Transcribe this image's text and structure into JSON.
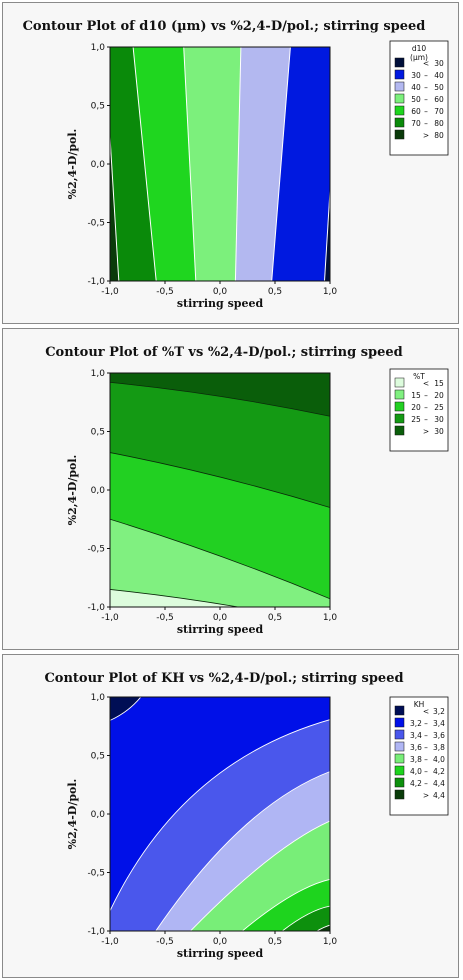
{
  "chart_data": [
    {
      "type": "contour",
      "title": "Contour Plot of d10 (µm) vs %2,4-D/pol.; stirring speed",
      "xlabel": "stirring speed",
      "ylabel": "%2,4-D/pol.",
      "xlim": [
        -1,
        1
      ],
      "ylim": [
        -1,
        1
      ],
      "xticks": [
        "-1,0",
        "-0,5",
        "0,0",
        "0,5",
        "1,0"
      ],
      "yticks": [
        "-1,0",
        "-0,5",
        "0,0",
        "0,5",
        "1,0"
      ],
      "legend": {
        "title": [
          "d10",
          "(µm)"
        ],
        "position": "right",
        "entries": [
          {
            "label": [
              "",
              "<",
              "30"
            ],
            "color": "#000f3a"
          },
          {
            "label": [
              "30",
              "–",
              "40"
            ],
            "color": "#0019e0"
          },
          {
            "label": [
              "40",
              "–",
              "50"
            ],
            "color": "#b3b8f0"
          },
          {
            "label": [
              "50",
              "–",
              "60"
            ],
            "color": "#7cf07c"
          },
          {
            "label": [
              "60",
              "–",
              "70"
            ],
            "color": "#1fd61f"
          },
          {
            "label": [
              "70",
              "–",
              "80"
            ],
            "color": "#0a8a0a"
          },
          {
            "label": [
              "",
              ">",
              "80"
            ],
            "color": "#0a3a0a"
          }
        ]
      },
      "contours": [
        {
          "level": 80,
          "bottom_x": -0.92,
          "top_x": -1.05
        },
        {
          "level": 70,
          "bottom_x": -0.58,
          "top_x": -0.79
        },
        {
          "level": 60,
          "bottom_x": -0.22,
          "top_x": -0.33
        },
        {
          "level": 50,
          "bottom_x": 0.14,
          "top_x": 0.19
        },
        {
          "level": 40,
          "bottom_x": 0.47,
          "top_x": 0.64
        },
        {
          "level": 30,
          "bottom_x": 0.95,
          "top_x": 1.08
        }
      ]
    },
    {
      "type": "contour",
      "title": "Contour Plot of %T vs %2,4-D/pol.; stirring speed",
      "xlabel": "stirring speed",
      "ylabel": "%2,4-D/pol.",
      "xlim": [
        -1,
        1
      ],
      "ylim": [
        -1,
        1
      ],
      "xticks": [
        "-1,0",
        "-0,5",
        "0,0",
        "0,5",
        "1,0"
      ],
      "yticks": [
        "-1,0",
        "-0,5",
        "0,0",
        "0,5",
        "1,0"
      ],
      "legend": {
        "title": [
          "%T"
        ],
        "position": "right",
        "entries": [
          {
            "label": [
              "",
              "<",
              "15"
            ],
            "color": "#ddfcdd"
          },
          {
            "label": [
              "15",
              "–",
              "20"
            ],
            "color": "#80f080"
          },
          {
            "label": [
              "20",
              "–",
              "25"
            ],
            "color": "#22d022"
          },
          {
            "label": [
              "25",
              "–",
              "30"
            ],
            "color": "#149a14"
          },
          {
            "label": [
              "",
              ">",
              "30"
            ],
            "color": "#0a5e0a"
          }
        ]
      },
      "contours": [
        {
          "level": 15,
          "y_left": -0.85,
          "y_right": -1.15
        },
        {
          "level": 20,
          "y_left": -0.25,
          "y_right": -0.93
        },
        {
          "level": 25,
          "y_left": 0.32,
          "y_right": -0.15
        },
        {
          "level": 30,
          "y_left": 0.92,
          "y_right": 0.63
        }
      ]
    },
    {
      "type": "contour",
      "title": "Contour Plot of KH vs %2,4-D/pol.; stirring speed",
      "xlabel": "stirring speed",
      "ylabel": "%2,4-D/pol.",
      "xlim": [
        -1,
        1
      ],
      "ylim": [
        -1,
        1
      ],
      "xticks": [
        "-1,0",
        "-0,5",
        "0,0",
        "0,5",
        "1,0"
      ],
      "yticks": [
        "-1,0",
        "-0,5",
        "0,0",
        "0,5",
        "1,0"
      ],
      "legend": {
        "title": [
          "KH"
        ],
        "position": "right",
        "entries": [
          {
            "label": [
              "",
              "<",
              "3,2"
            ],
            "color": "#000e55"
          },
          {
            "label": [
              "3,2",
              "–",
              "3,4"
            ],
            "color": "#0010e8"
          },
          {
            "label": [
              "3,4",
              "–",
              "3,6"
            ],
            "color": "#4a57ec"
          },
          {
            "label": [
              "3,6",
              "–",
              "3,8"
            ],
            "color": "#b0b6f4"
          },
          {
            "label": [
              "3,8",
              "–",
              "4,0"
            ],
            "color": "#78ee78"
          },
          {
            "label": [
              "4,0",
              "–",
              "4,2"
            ],
            "color": "#1ed41e"
          },
          {
            "label": [
              "4,2",
              "–",
              "4,4"
            ],
            "color": "#0d900d"
          },
          {
            "label": [
              "",
              ">",
              "4,4"
            ],
            "color": "#0a3c0a"
          }
        ]
      },
      "contours": [
        {
          "level": 3.2,
          "start": [
            -1.05,
            0.78
          ],
          "end": [
            -0.68,
            1.05
          ]
        },
        {
          "level": 3.4,
          "start": [
            -1.05,
            -0.93
          ],
          "ctrl": [
            -0.4,
            0.45
          ],
          "end": [
            1.05,
            0.82
          ]
        },
        {
          "level": 3.6,
          "start": [
            -0.62,
            -1.05
          ],
          "ctrl": [
            0.2,
            0.1
          ],
          "end": [
            1.05,
            0.38
          ]
        },
        {
          "level": 3.8,
          "start": [
            -0.32,
            -1.05
          ],
          "ctrl": [
            0.5,
            -0.25
          ],
          "end": [
            1.05,
            -0.04
          ]
        },
        {
          "level": 4.0,
          "start": [
            0.14,
            -1.05
          ],
          "ctrl": [
            0.7,
            -0.6
          ],
          "end": [
            1.05,
            -0.55
          ]
        },
        {
          "level": 4.2,
          "start": [
            0.5,
            -1.05
          ],
          "ctrl": [
            0.82,
            -0.8
          ],
          "end": [
            1.05,
            -0.78
          ]
        },
        {
          "level": 4.4,
          "start": [
            0.8,
            -1.05
          ],
          "ctrl": [
            0.95,
            -0.95
          ],
          "end": [
            1.05,
            -0.94
          ]
        }
      ]
    }
  ]
}
